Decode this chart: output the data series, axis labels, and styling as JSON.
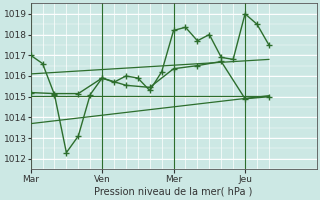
{
  "title": "",
  "xlabel": "Pression niveau de la mer( hPa )",
  "bg_color": "#cce8e4",
  "grid_color": "#b0d8d3",
  "line_color": "#2d6e2d",
  "ylim": [
    1011.5,
    1019.5
  ],
  "day_labels": [
    "Mar",
    "Ven",
    "Mer",
    "Jeu"
  ],
  "day_positions": [
    0,
    24,
    48,
    72
  ],
  "xlim": [
    0,
    96
  ],
  "yticks": [
    1012,
    1013,
    1014,
    1015,
    1016,
    1017,
    1018,
    1019
  ],
  "series1_x": [
    0,
    4,
    8,
    12,
    16,
    20,
    24,
    28,
    32,
    36,
    40,
    44,
    48,
    52,
    56,
    60,
    64,
    68,
    72,
    76,
    80
  ],
  "series1_y": [
    1017.0,
    1016.6,
    1015.1,
    1012.3,
    1013.1,
    1015.1,
    1015.9,
    1015.7,
    1016.0,
    1015.9,
    1015.3,
    1016.2,
    1018.2,
    1018.35,
    1017.7,
    1018.0,
    1016.9,
    1016.8,
    1019.0,
    1018.5,
    1017.5
  ],
  "series2_x": [
    0,
    8,
    16,
    24,
    32,
    40,
    48,
    56,
    64,
    72,
    80
  ],
  "series2_y": [
    1015.2,
    1015.15,
    1015.15,
    1015.9,
    1015.55,
    1015.45,
    1016.35,
    1016.5,
    1016.7,
    1014.9,
    1015.0
  ],
  "series3_x": [
    0,
    80
  ],
  "series3_y": [
    1015.05,
    1015.05
  ],
  "series4_x": [
    0,
    80
  ],
  "series4_y": [
    1013.7,
    1015.05
  ],
  "series5_x": [
    0,
    80
  ],
  "series5_y": [
    1016.1,
    1016.8
  ]
}
